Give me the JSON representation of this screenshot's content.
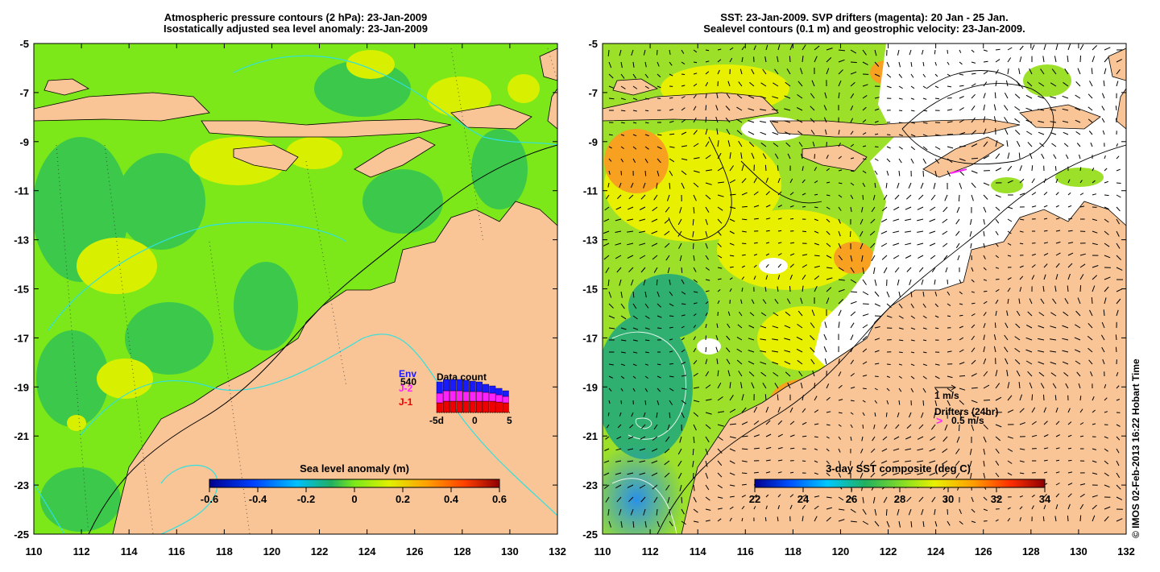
{
  "left_panel": {
    "title_line1": "Atmospheric pressure contours (2 hPa): 23-Jan-2009",
    "title_line2": "Isostatically adjusted sea level anomaly: 23-Jan-2009",
    "colorbar": {
      "label": "Sea level anomaly (m)",
      "ticks": [
        "-0.6",
        "-0.4",
        "-0.2",
        "0",
        "0.2",
        "0.4",
        "0.6"
      ]
    },
    "inset": {
      "title": "Data count",
      "series_labels": [
        {
          "text": "Env",
          "color": "#1a1aff"
        },
        {
          "text": "J-2",
          "color": "#ff22ff"
        },
        {
          "text": "J-1",
          "color": "#ee0000"
        }
      ],
      "value": "540",
      "xticks": [
        "-5d",
        "0",
        "5"
      ]
    }
  },
  "right_panel": {
    "title_line1": "SST: 23-Jan-2009. SVP drifters (magenta): 20 Jan - 25 Jan.",
    "title_line2": "Sealevel contours (0.1 m) and geostrophic velocity: 23-Jan-2009.",
    "colorbar": {
      "label": "3-day SST composite (deg C)",
      "ticks": [
        "22",
        "24",
        "26",
        "28",
        "30",
        "32",
        "34"
      ]
    },
    "velocity_scale_label": "1 m/s",
    "drifters_label": "Drifters (24hr)",
    "drifter_speed_label": "0.5 m/s"
  },
  "axes": {
    "lat_ticks": [
      "-5",
      "-7",
      "-9",
      "-11",
      "-13",
      "-15",
      "-17",
      "-19",
      "-21",
      "-23",
      "-25"
    ],
    "lon_ticks": [
      "110",
      "112",
      "114",
      "116",
      "118",
      "120",
      "122",
      "124",
      "126",
      "128",
      "130",
      "132"
    ]
  },
  "credit": "© IMOS 02-Feb-2013 16:22 Hobart Time",
  "colors": {
    "land": "#f9c596",
    "ssh_background": "#7ce81a",
    "sst_background": "#9ce02a",
    "cloud_white": "#ffffff"
  }
}
